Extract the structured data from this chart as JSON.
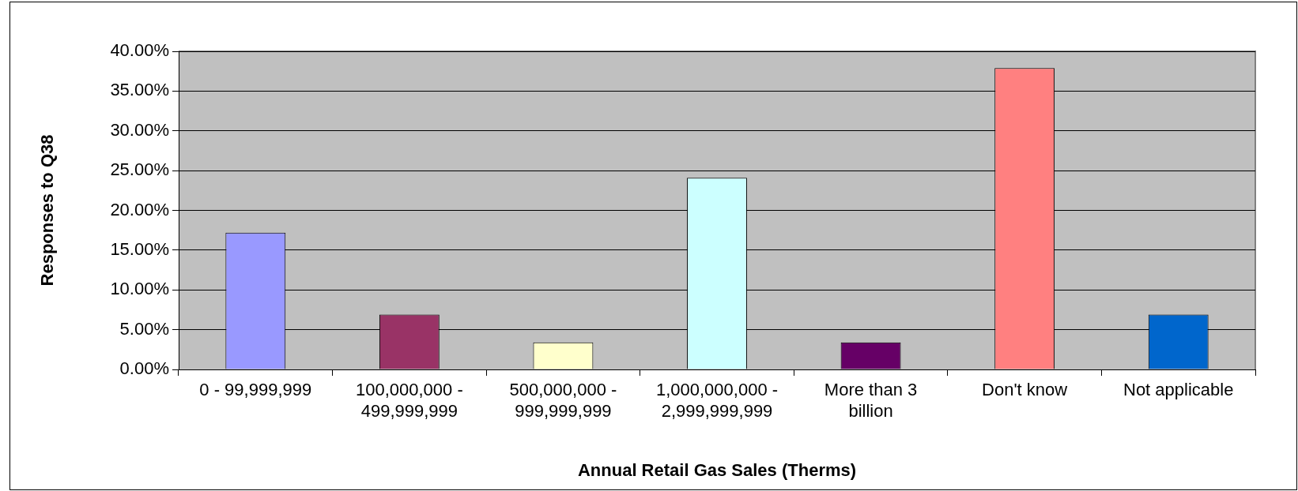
{
  "chart_data": {
    "type": "bar",
    "xlabel": "Annual Retail Gas Sales (Therms)",
    "ylabel": "Responses to Q38",
    "categories": [
      "0 - 99,999,999",
      "100,000,000 - 499,999,999",
      "500,000,000 - 999,999,999",
      "1,000,000,000 - 2,999,999,999",
      "More than 3 billion",
      "Don't know",
      "Not applicable"
    ],
    "values": [
      17.2,
      6.9,
      3.4,
      24.1,
      3.4,
      37.9,
      6.9
    ],
    "colors": [
      "#9999ff",
      "#993366",
      "#ffffcc",
      "#ccffff",
      "#660066",
      "#ff8080",
      "#0066cc"
    ],
    "ylim": [
      0,
      40
    ],
    "yticks": [
      {
        "value": 0,
        "label": "0.00%"
      },
      {
        "value": 5,
        "label": "5.00%"
      },
      {
        "value": 10,
        "label": "10.00%"
      },
      {
        "value": 15,
        "label": "15.00%"
      },
      {
        "value": 20,
        "label": "20.00%"
      },
      {
        "value": 25,
        "label": "25.00%"
      },
      {
        "value": 30,
        "label": "30.00%"
      },
      {
        "value": 35,
        "label": "35.00%"
      },
      {
        "value": 40,
        "label": "40.00%"
      }
    ],
    "grid": "y"
  }
}
